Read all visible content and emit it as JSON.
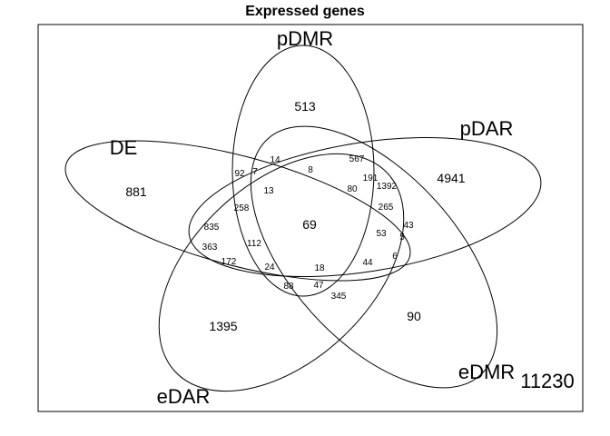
{
  "title": "Expressed genes",
  "sets": [
    {
      "key": "pDMR",
      "label": "pDMR"
    },
    {
      "key": "pDAR",
      "label": "pDAR"
    },
    {
      "key": "DE",
      "label": "DE"
    },
    {
      "key": "eDAR",
      "label": "eDAR"
    },
    {
      "key": "eDMR",
      "label": "eDMR"
    }
  ],
  "outside_count": "11230",
  "regions": [
    {
      "id": "r1",
      "value": "513",
      "size": "lg"
    },
    {
      "id": "r2",
      "value": "4941",
      "size": "lg"
    },
    {
      "id": "r3",
      "value": "881",
      "size": "lg"
    },
    {
      "id": "r4",
      "value": "1395",
      "size": "lg"
    },
    {
      "id": "r5",
      "value": "90",
      "size": "lg"
    },
    {
      "id": "r6",
      "value": "69",
      "size": "lg"
    },
    {
      "id": "r7",
      "value": "92",
      "size": "sm"
    },
    {
      "id": "r8",
      "value": "7",
      "size": "sm"
    },
    {
      "id": "r9",
      "value": "14",
      "size": "sm"
    },
    {
      "id": "r10",
      "value": "8",
      "size": "sm"
    },
    {
      "id": "r11",
      "value": "567",
      "size": "sm"
    },
    {
      "id": "r12",
      "value": "191",
      "size": "sm"
    },
    {
      "id": "r13",
      "value": "80",
      "size": "sm"
    },
    {
      "id": "r14",
      "value": "1392",
      "size": "sm"
    },
    {
      "id": "r15",
      "value": "13",
      "size": "sm"
    },
    {
      "id": "r16",
      "value": "258",
      "size": "sm"
    },
    {
      "id": "r17",
      "value": "265",
      "size": "sm"
    },
    {
      "id": "r18",
      "value": "835",
      "size": "sm"
    },
    {
      "id": "r19",
      "value": "43",
      "size": "sm"
    },
    {
      "id": "r20",
      "value": "53",
      "size": "sm"
    },
    {
      "id": "r21",
      "value": "5",
      "size": "sm"
    },
    {
      "id": "r22",
      "value": "363",
      "size": "sm"
    },
    {
      "id": "r23",
      "value": "112",
      "size": "sm"
    },
    {
      "id": "r24",
      "value": "172",
      "size": "sm"
    },
    {
      "id": "r25",
      "value": "24",
      "size": "sm"
    },
    {
      "id": "r26",
      "value": "18",
      "size": "sm"
    },
    {
      "id": "r27",
      "value": "44",
      "size": "sm"
    },
    {
      "id": "r28",
      "value": "6",
      "size": "sm"
    },
    {
      "id": "r29",
      "value": "88",
      "size": "sm"
    },
    {
      "id": "r30",
      "value": "47",
      "size": "sm"
    },
    {
      "id": "r31",
      "value": "345",
      "size": "sm"
    }
  ]
}
